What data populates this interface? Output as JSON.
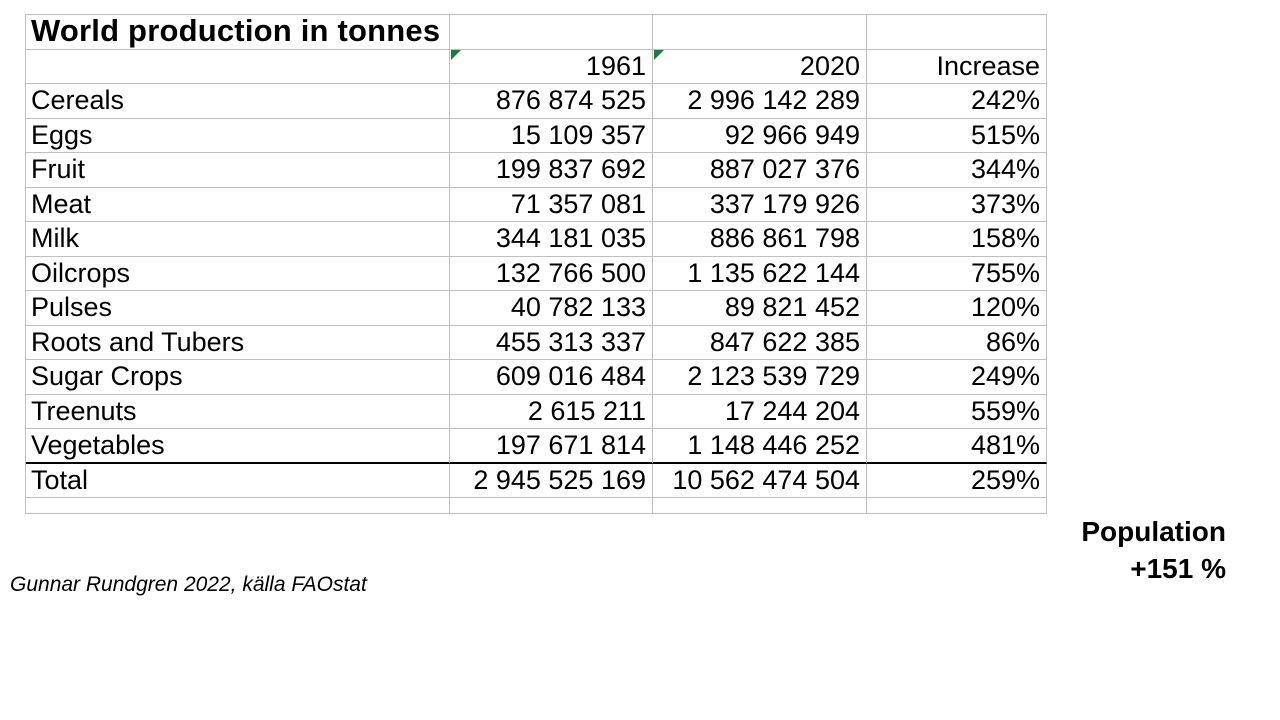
{
  "table": {
    "title": "World production in tonnes",
    "header": {
      "category": "",
      "year_1961": "1961",
      "year_2020": "2020",
      "increase": "Increase"
    },
    "rows": [
      {
        "label": "Cereals",
        "y1961": "876 874 525",
        "y2020": "2 996 142 289",
        "increase": "242%"
      },
      {
        "label": "Eggs",
        "y1961": "15 109 357",
        "y2020": "92 966 949",
        "increase": "515%"
      },
      {
        "label": "Fruit",
        "y1961": "199 837 692",
        "y2020": "887 027 376",
        "increase": "344%"
      },
      {
        "label": "Meat",
        "y1961": "71 357 081",
        "y2020": "337 179 926",
        "increase": "373%"
      },
      {
        "label": "Milk",
        "y1961": "344 181 035",
        "y2020": "886 861 798",
        "increase": "158%"
      },
      {
        "label": "Oilcrops",
        "y1961": "132 766 500",
        "y2020": "1 135 622 144",
        "increase": "755%"
      },
      {
        "label": "Pulses",
        "y1961": "40 782 133",
        "y2020": "89 821 452",
        "increase": "120%"
      },
      {
        "label": "Roots and Tubers",
        "y1961": "455 313 337",
        "y2020": "847 622 385",
        "increase": "86%"
      },
      {
        "label": "Sugar Crops",
        "y1961": "609 016 484",
        "y2020": "2 123 539 729",
        "increase": "249%"
      },
      {
        "label": "Treenuts",
        "y1961": "2 615 211",
        "y2020": "17 244 204",
        "increase": "559%"
      },
      {
        "label": "Vegetables",
        "y1961": "197 671 814",
        "y2020": "1 148 446 252",
        "increase": "481%"
      }
    ],
    "total_row": {
      "label": "Total",
      "y1961": "2 945 525 169",
      "y2020": "10 562 474 504",
      "increase": "259%"
    }
  },
  "annotations": {
    "source_credit": "Gunnar Rundgren 2022, källa FAOstat",
    "population_label": "Population",
    "population_value": "+151 %"
  },
  "colors": {
    "gridline": "#bfbfbf",
    "heavy_rule": "#000000",
    "flag_green": "#1f7b3c",
    "text": "#000000",
    "background": "#ffffff"
  }
}
